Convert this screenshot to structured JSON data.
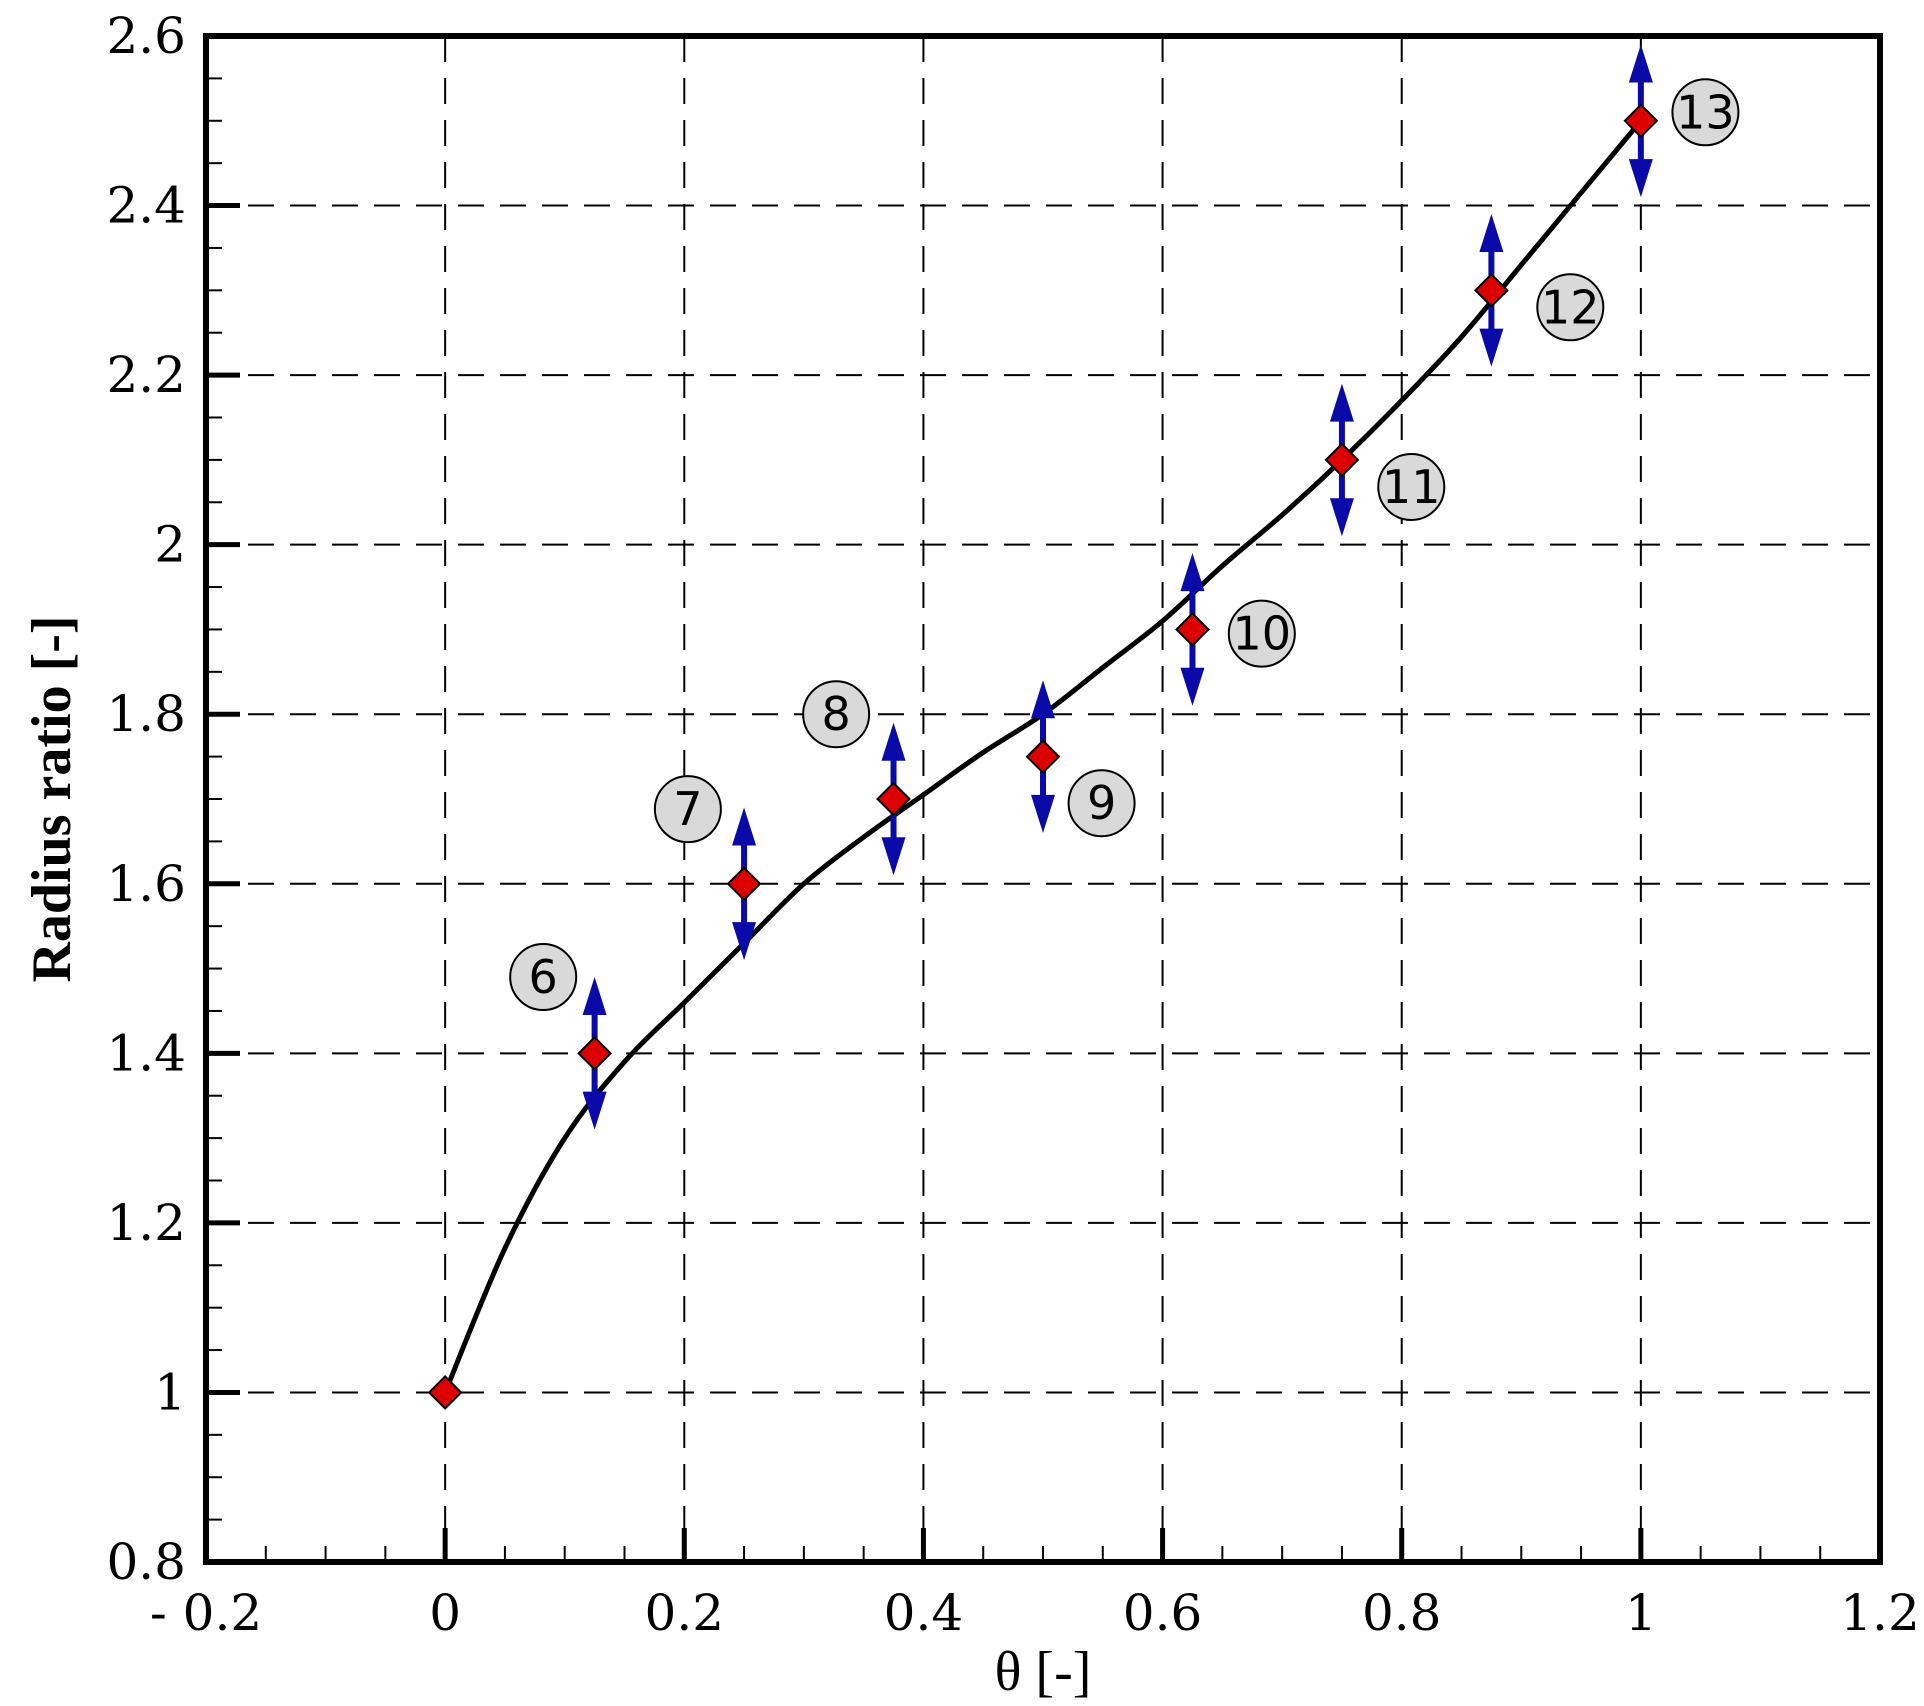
{
  "chart_data": {
    "type": "scatter",
    "title": "",
    "xlabel": "θ [-]",
    "ylabel": "Radius ratio [-]",
    "xlim": [
      -0.2,
      1.2
    ],
    "ylim": [
      0.8,
      2.6
    ],
    "x_ticks": [
      -0.2,
      0,
      0.2,
      0.4,
      0.6,
      0.8,
      1,
      1.2
    ],
    "x_tick_labels": [
      "- 0.2",
      "0",
      "0.2",
      "0.4",
      "0.6",
      "0.8",
      "1",
      "1.2"
    ],
    "y_ticks": [
      0.8,
      1,
      1.2,
      1.4,
      1.6,
      1.8,
      2,
      2.2,
      2.4,
      2.6
    ],
    "y_tick_labels": [
      "0.8",
      "1",
      "1.2",
      "1.4",
      "1.6",
      "1.8",
      "2",
      "2.2",
      "2.4",
      "2.6"
    ],
    "grid": true,
    "legend": "none",
    "colors": {
      "marker_fill": "#dd0000",
      "arrow": "#0a0aa8",
      "curve": "#000000",
      "badge_fill": "#d9d9d9",
      "grid": "#000000"
    },
    "curve": {
      "x": [
        0,
        0.05,
        0.1,
        0.15,
        0.2,
        0.25,
        0.3,
        0.35,
        0.4,
        0.45,
        0.5,
        0.55,
        0.6,
        0.65,
        0.7,
        0.75,
        0.8,
        0.85,
        0.9,
        0.95,
        1
      ],
      "y": [
        1.0,
        1.17,
        1.3,
        1.39,
        1.46,
        1.53,
        1.6,
        1.655,
        1.705,
        1.755,
        1.8,
        1.855,
        1.91,
        1.975,
        2.035,
        2.1,
        2.17,
        2.245,
        2.33,
        2.415,
        2.5
      ]
    },
    "points": [
      {
        "x": 0,
        "y": 1.0,
        "label": "",
        "arrow": false
      },
      {
        "x": 0.125,
        "y": 1.4,
        "label": "6",
        "arrow": true,
        "label_dx": -0.043,
        "label_dy": 0.09
      },
      {
        "x": 0.25,
        "y": 1.6,
        "label": "7",
        "arrow": true,
        "label_dx": -0.047,
        "label_dy": 0.088
      },
      {
        "x": 0.375,
        "y": 1.7,
        "label": "8",
        "arrow": true,
        "label_dx": -0.048,
        "label_dy": 0.1
      },
      {
        "x": 0.5,
        "y": 1.75,
        "label": "9",
        "arrow": true,
        "label_dx": 0.049,
        "label_dy": -0.055
      },
      {
        "x": 0.625,
        "y": 1.9,
        "label": "10",
        "arrow": true,
        "label_dx": 0.058,
        "label_dy": -0.005
      },
      {
        "x": 0.75,
        "y": 2.1,
        "label": "11",
        "arrow": true,
        "label_dx": 0.058,
        "label_dy": -0.032
      },
      {
        "x": 0.875,
        "y": 2.3,
        "label": "12",
        "arrow": true,
        "label_dx": 0.066,
        "label_dy": -0.02
      },
      {
        "x": 1.0,
        "y": 2.5,
        "label": "13",
        "arrow": true,
        "label_dx": 0.054,
        "label_dy": 0.01
      }
    ],
    "arrow_half_extent": 0.09
  }
}
